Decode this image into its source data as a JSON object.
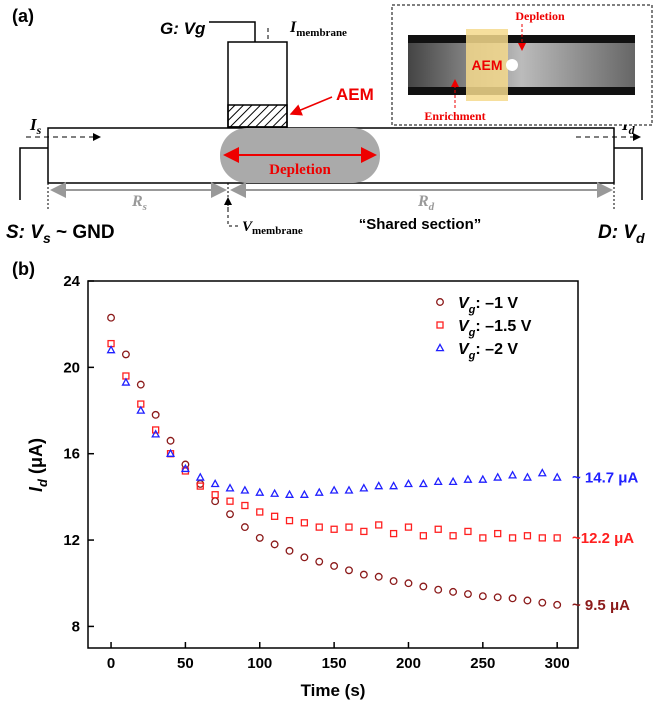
{
  "panel_a": {
    "label": "(a)",
    "gate": "G: Vg",
    "i_membrane": {
      "main": "I",
      "sub": "membrane"
    },
    "aem": "AEM",
    "depletion": "Depletion",
    "inset": {
      "depletion": "Depletion",
      "aem": "AEM",
      "enrichment": "Enrichment"
    },
    "i_s": {
      "main": "I",
      "sub": "s"
    },
    "i_d": {
      "main": "I",
      "sub": "d"
    },
    "r_s": {
      "main": "R",
      "sub": "s"
    },
    "r_d": {
      "main": "R",
      "sub": "d"
    },
    "source": {
      "main": "S: V",
      "sub": "s",
      "rest": " ~ GND"
    },
    "drain": {
      "main": "D: V",
      "sub": "d"
    },
    "v_membrane": {
      "main": "V",
      "sub": "membrane"
    },
    "shared": "“Shared section”"
  },
  "chart_data": {
    "type": "scatter",
    "panel_label": "(b)",
    "x_label": "Time (s)",
    "y_label": {
      "main": "I",
      "sub": "d",
      "unit": " (μA)"
    },
    "x": [
      0,
      10,
      20,
      30,
      40,
      50,
      60,
      70,
      80,
      90,
      100,
      110,
      120,
      130,
      140,
      150,
      160,
      170,
      180,
      190,
      200,
      210,
      220,
      230,
      240,
      250,
      260,
      270,
      280,
      290,
      300
    ],
    "xlim": [
      -15.5,
      314
    ],
    "xticks": [
      0,
      50,
      100,
      150,
      200,
      250,
      300
    ],
    "ylim": [
      7,
      24
    ],
    "yticks": [
      8,
      12,
      16,
      20,
      24
    ],
    "legend": "upper right",
    "series": [
      {
        "name": {
          "symbol": "V",
          "sub": "g",
          "text": ": –1 V"
        },
        "color": "#8b1a1a",
        "marker": "circle",
        "end_label": "~ 9.5 μA",
        "values": [
          22.3,
          20.6,
          19.2,
          17.8,
          16.6,
          15.5,
          14.6,
          13.8,
          13.2,
          12.6,
          12.1,
          11.8,
          11.5,
          11.2,
          11.0,
          10.8,
          10.6,
          10.4,
          10.3,
          10.1,
          10.0,
          9.85,
          9.7,
          9.6,
          9.5,
          9.4,
          9.35,
          9.3,
          9.2,
          9.1,
          9.0
        ]
      },
      {
        "name": {
          "symbol": "V",
          "sub": "g",
          "text": ": –1.5 V"
        },
        "color": "#ff2020",
        "marker": "square",
        "end_label": "~12.2 μA",
        "values": [
          21.1,
          19.6,
          18.3,
          17.1,
          16.0,
          15.2,
          14.5,
          14.1,
          13.8,
          13.6,
          13.3,
          13.1,
          12.9,
          12.8,
          12.6,
          12.5,
          12.6,
          12.4,
          12.7,
          12.3,
          12.6,
          12.2,
          12.5,
          12.2,
          12.4,
          12.1,
          12.3,
          12.1,
          12.2,
          12.1,
          12.1
        ]
      },
      {
        "name": {
          "symbol": "V",
          "sub": "g",
          "text": ": –2 V"
        },
        "color": "#2020ff",
        "marker": "triangle",
        "end_label": "~ 14.7 μA",
        "values": [
          20.8,
          19.3,
          18.0,
          16.9,
          16.0,
          15.3,
          14.9,
          14.6,
          14.4,
          14.3,
          14.2,
          14.15,
          14.1,
          14.1,
          14.2,
          14.3,
          14.3,
          14.4,
          14.5,
          14.5,
          14.6,
          14.6,
          14.7,
          14.7,
          14.8,
          14.8,
          14.9,
          15.0,
          14.9,
          15.1,
          14.9
        ]
      }
    ]
  }
}
